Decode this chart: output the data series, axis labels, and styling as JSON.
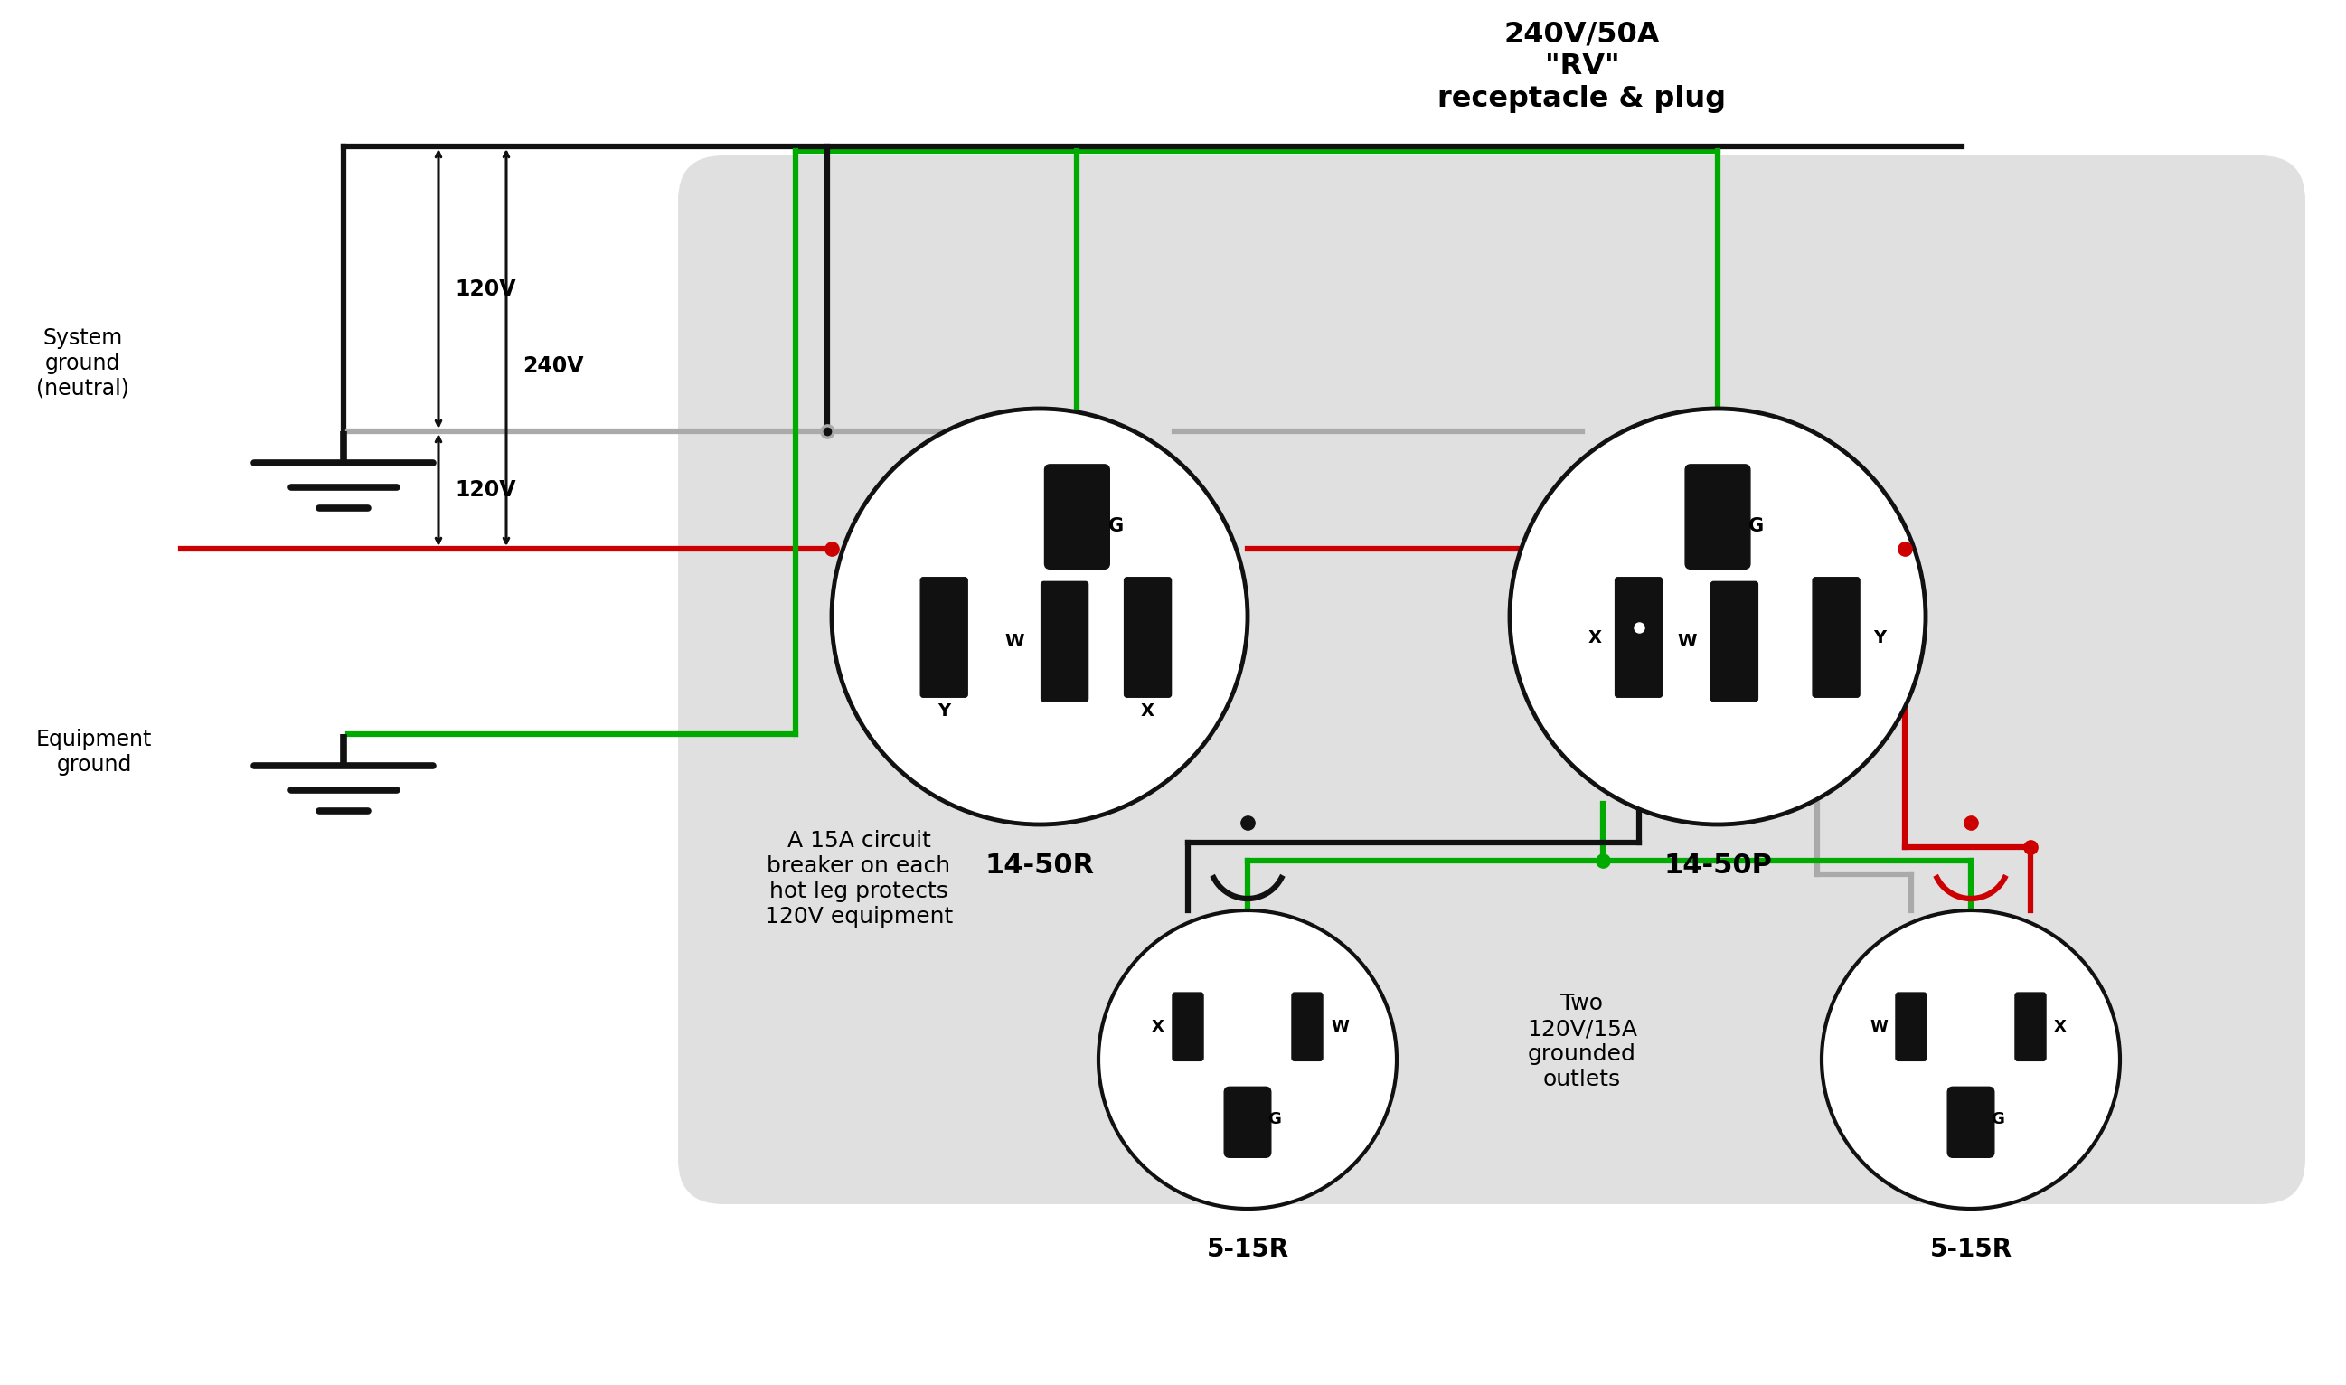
{
  "bg_color": "#ffffff",
  "panel_bg": "#e0e0e0",
  "title": "240V/50A\n\"RV\"\nreceptacle & plug",
  "label_14_50R": "14-50R",
  "label_14_50P": "14-50P",
  "label_5_15R": "5-15R",
  "note_breaker": "A 15A circuit\nbreaker on each\nhot leg protects\n120V equipment",
  "note_outlets": "Two\n120V/15A\ngrounded\noutlets",
  "note_sys_ground": "System\nground\n(neutral)",
  "note_equip_ground": "Equipment\nground",
  "v120_top": "120V",
  "v240": "240V",
  "v120_bot": "120V",
  "wire_black": "#111111",
  "wire_gray": "#aaaaaa",
  "wire_green": "#00aa00",
  "wire_red": "#cc0000",
  "pin_color": "#111111",
  "lw_wire": 4.5,
  "lw_ground": 5.5
}
